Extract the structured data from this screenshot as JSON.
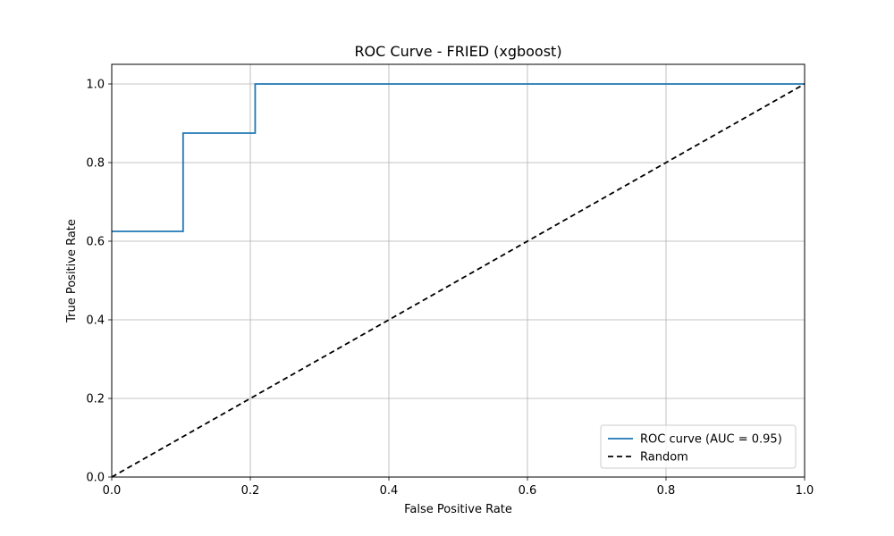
{
  "chart_data": {
    "type": "line",
    "title": "ROC Curve - FRIED (xgboost)",
    "xlabel": "False Positive Rate",
    "ylabel": "True Positive Rate",
    "xlim": [
      0.0,
      1.0
    ],
    "ylim": [
      0.0,
      1.05
    ],
    "xticks": [
      0.0,
      0.2,
      0.4,
      0.6,
      0.8,
      1.0
    ],
    "yticks": [
      0.0,
      0.2,
      0.4,
      0.6,
      0.8,
      1.0
    ],
    "xtick_labels": [
      "0.0",
      "0.2",
      "0.4",
      "0.6",
      "0.8",
      "1.0"
    ],
    "ytick_labels": [
      "0.0",
      "0.2",
      "0.4",
      "0.6",
      "0.8",
      "1.0"
    ],
    "grid": true,
    "legend_position": "bottom-right",
    "series": [
      {
        "name": "ROC curve (AUC = 0.95)",
        "color": "#1f77b4",
        "style": "solid",
        "x": [
          0.0,
          0.103,
          0.103,
          0.207,
          0.207,
          1.0
        ],
        "y": [
          0.625,
          0.625,
          0.875,
          0.875,
          1.0,
          1.0
        ]
      },
      {
        "name": "Random",
        "color": "#000000",
        "style": "dashed",
        "x": [
          0.0,
          1.0
        ],
        "y": [
          0.0,
          1.0
        ]
      }
    ]
  }
}
